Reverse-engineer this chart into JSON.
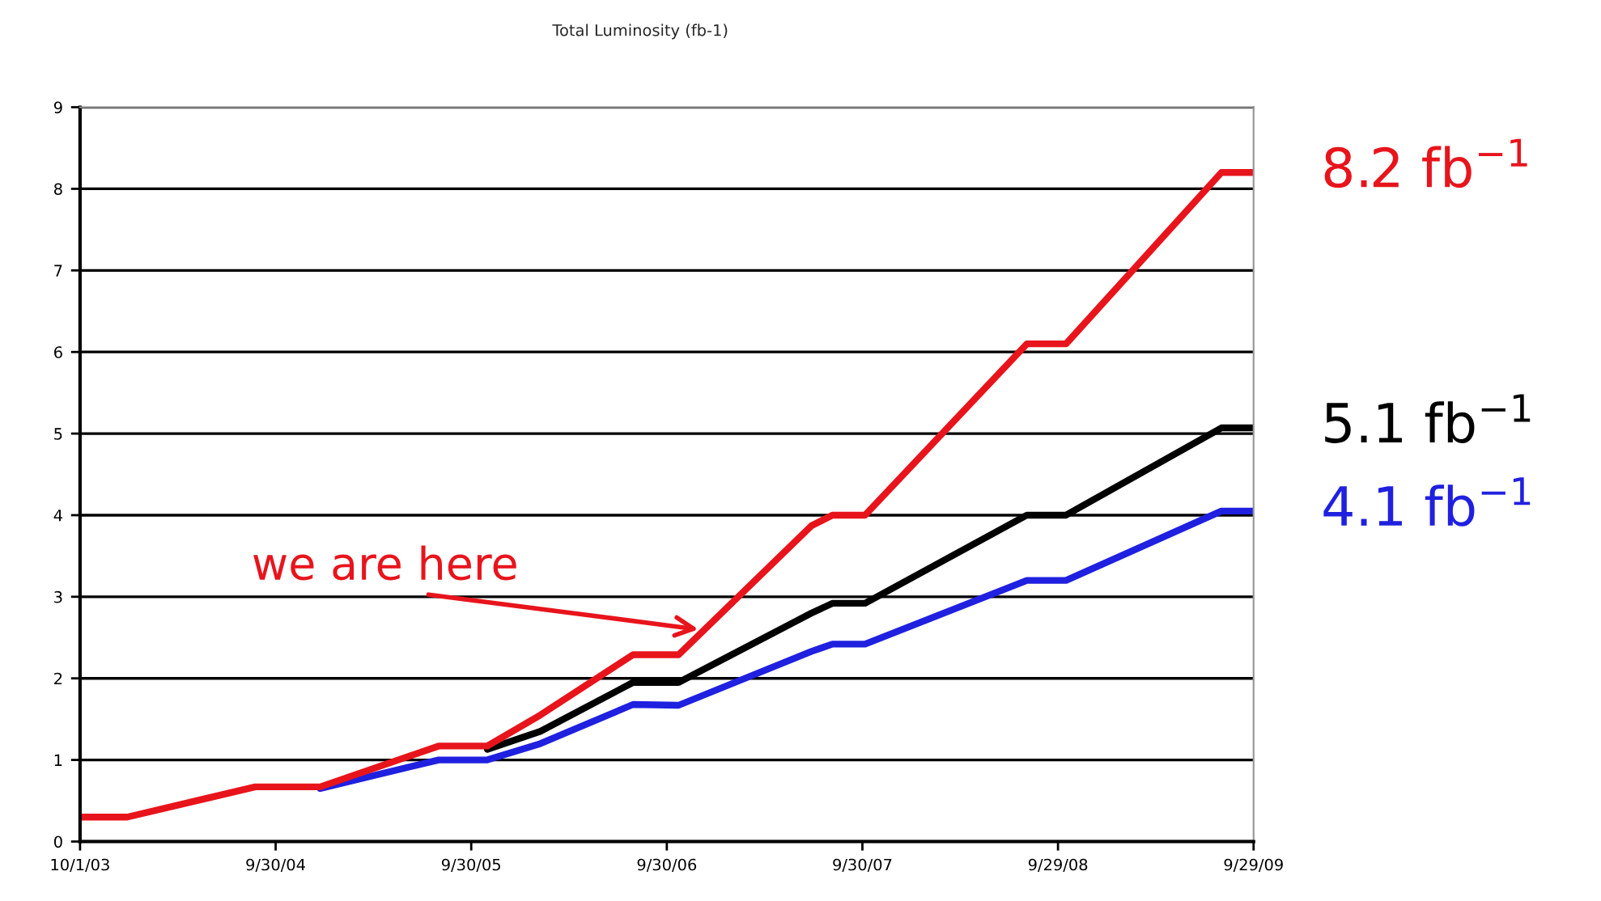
{
  "chart_data": {
    "type": "line",
    "title": "Total Luminosity (fb-1)",
    "xlim": [
      "2003-10-01",
      "2009-09-29"
    ],
    "xticks": [
      {
        "value": "2003-10-01",
        "label": "10/1/03"
      },
      {
        "value": "2004-09-30",
        "label": "9/30/04"
      },
      {
        "value": "2005-09-30",
        "label": "9/30/05"
      },
      {
        "value": "2006-09-30",
        "label": "9/30/06"
      },
      {
        "value": "2007-09-30",
        "label": "9/30/07"
      },
      {
        "value": "2008-09-29",
        "label": "9/29/08"
      },
      {
        "value": "2009-09-29",
        "label": "9/29/09"
      }
    ],
    "ylim": [
      0,
      9
    ],
    "yticks": [
      0,
      1,
      2,
      3,
      4,
      5,
      6,
      7,
      8,
      9
    ],
    "grid": "y",
    "legend": false,
    "marker": "none",
    "line_style": "solid",
    "series": [
      {
        "name": "8.2 fb$^{−1}$",
        "color": "#e8141c",
        "x": [
          "2003-10-01",
          "2003-12-28",
          "2004-08-23",
          "2004-12-22",
          "2005-07-31",
          "2005-10-30",
          "2006-02-06",
          "2006-07-29",
          "2006-10-22",
          "2007-06-27",
          "2007-08-05",
          "2007-10-05",
          "2008-08-02",
          "2008-10-14",
          "2009-07-31",
          "2009-09-29"
        ],
        "values": [
          0.3,
          0.3,
          0.67,
          0.67,
          1.17,
          1.17,
          1.55,
          2.29,
          2.29,
          3.87,
          4.0,
          4.0,
          6.1,
          6.1,
          8.2,
          8.2
        ]
      },
      {
        "name": "5.1 fb$^{−1}$",
        "color": "#000000",
        "x": [
          "2005-10-30",
          "2006-02-06",
          "2006-07-29",
          "2006-10-22",
          "2007-06-27",
          "2007-08-05",
          "2007-10-05",
          "2008-08-02",
          "2008-10-14",
          "2009-07-31",
          "2009-09-29"
        ],
        "values": [
          1.13,
          1.35,
          1.95,
          1.95,
          2.8,
          2.92,
          2.92,
          4.0,
          4.0,
          5.07,
          5.07
        ]
      },
      {
        "name": "4.1 fb$^{−1}$",
        "color": "#2020e0",
        "x": [
          "2004-12-22",
          "2005-07-31",
          "2005-10-30",
          "2006-02-06",
          "2006-07-29",
          "2006-10-22",
          "2007-06-27",
          "2007-08-05",
          "2007-10-05",
          "2008-08-02",
          "2008-10-14",
          "2009-07-31",
          "2009-09-29"
        ],
        "values": [
          0.65,
          1.0,
          1.0,
          1.2,
          1.68,
          1.67,
          2.33,
          2.42,
          2.42,
          3.2,
          3.2,
          4.05,
          4.05
        ]
      }
    ],
    "annotations": [
      {
        "text": "we are here",
        "x": "2006-11-28",
        "y": 2.6
      }
    ]
  }
}
